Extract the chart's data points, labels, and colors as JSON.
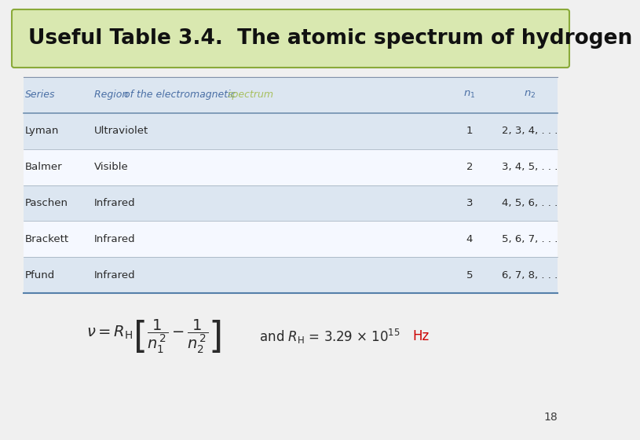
{
  "title": "Useful Table 3.4.  The atomic spectrum of hydrogen",
  "title_bg_color": "#d9e8b0",
  "title_border_color": "#8aaa3a",
  "title_fontsize": 19,
  "bg_color": "#f0f0f0",
  "header_text_color": "#4a6fa5",
  "spectrum_color": "#a8c060",
  "table_rows": [
    [
      "Lyman",
      "Ultraviolet",
      "1",
      "2, 3, 4, . . ."
    ],
    [
      "Balmer",
      "Visible",
      "2",
      "3, 4, 5, . . ."
    ],
    [
      "Paschen",
      "Infrared",
      "3",
      "4, 5, 6, . . ."
    ],
    [
      "Brackett",
      "Infrared",
      "4",
      "5, 6, 7, . . ."
    ],
    [
      "Pfund",
      "Infrared",
      "5",
      "6, 7, 8, . . ."
    ]
  ],
  "row_colors": [
    "#dce6f1",
    "#f5f8ff",
    "#dce6f1",
    "#f5f8ff",
    "#dce6f1"
  ],
  "table_text_color": "#2a2a2a",
  "page_number": "18"
}
